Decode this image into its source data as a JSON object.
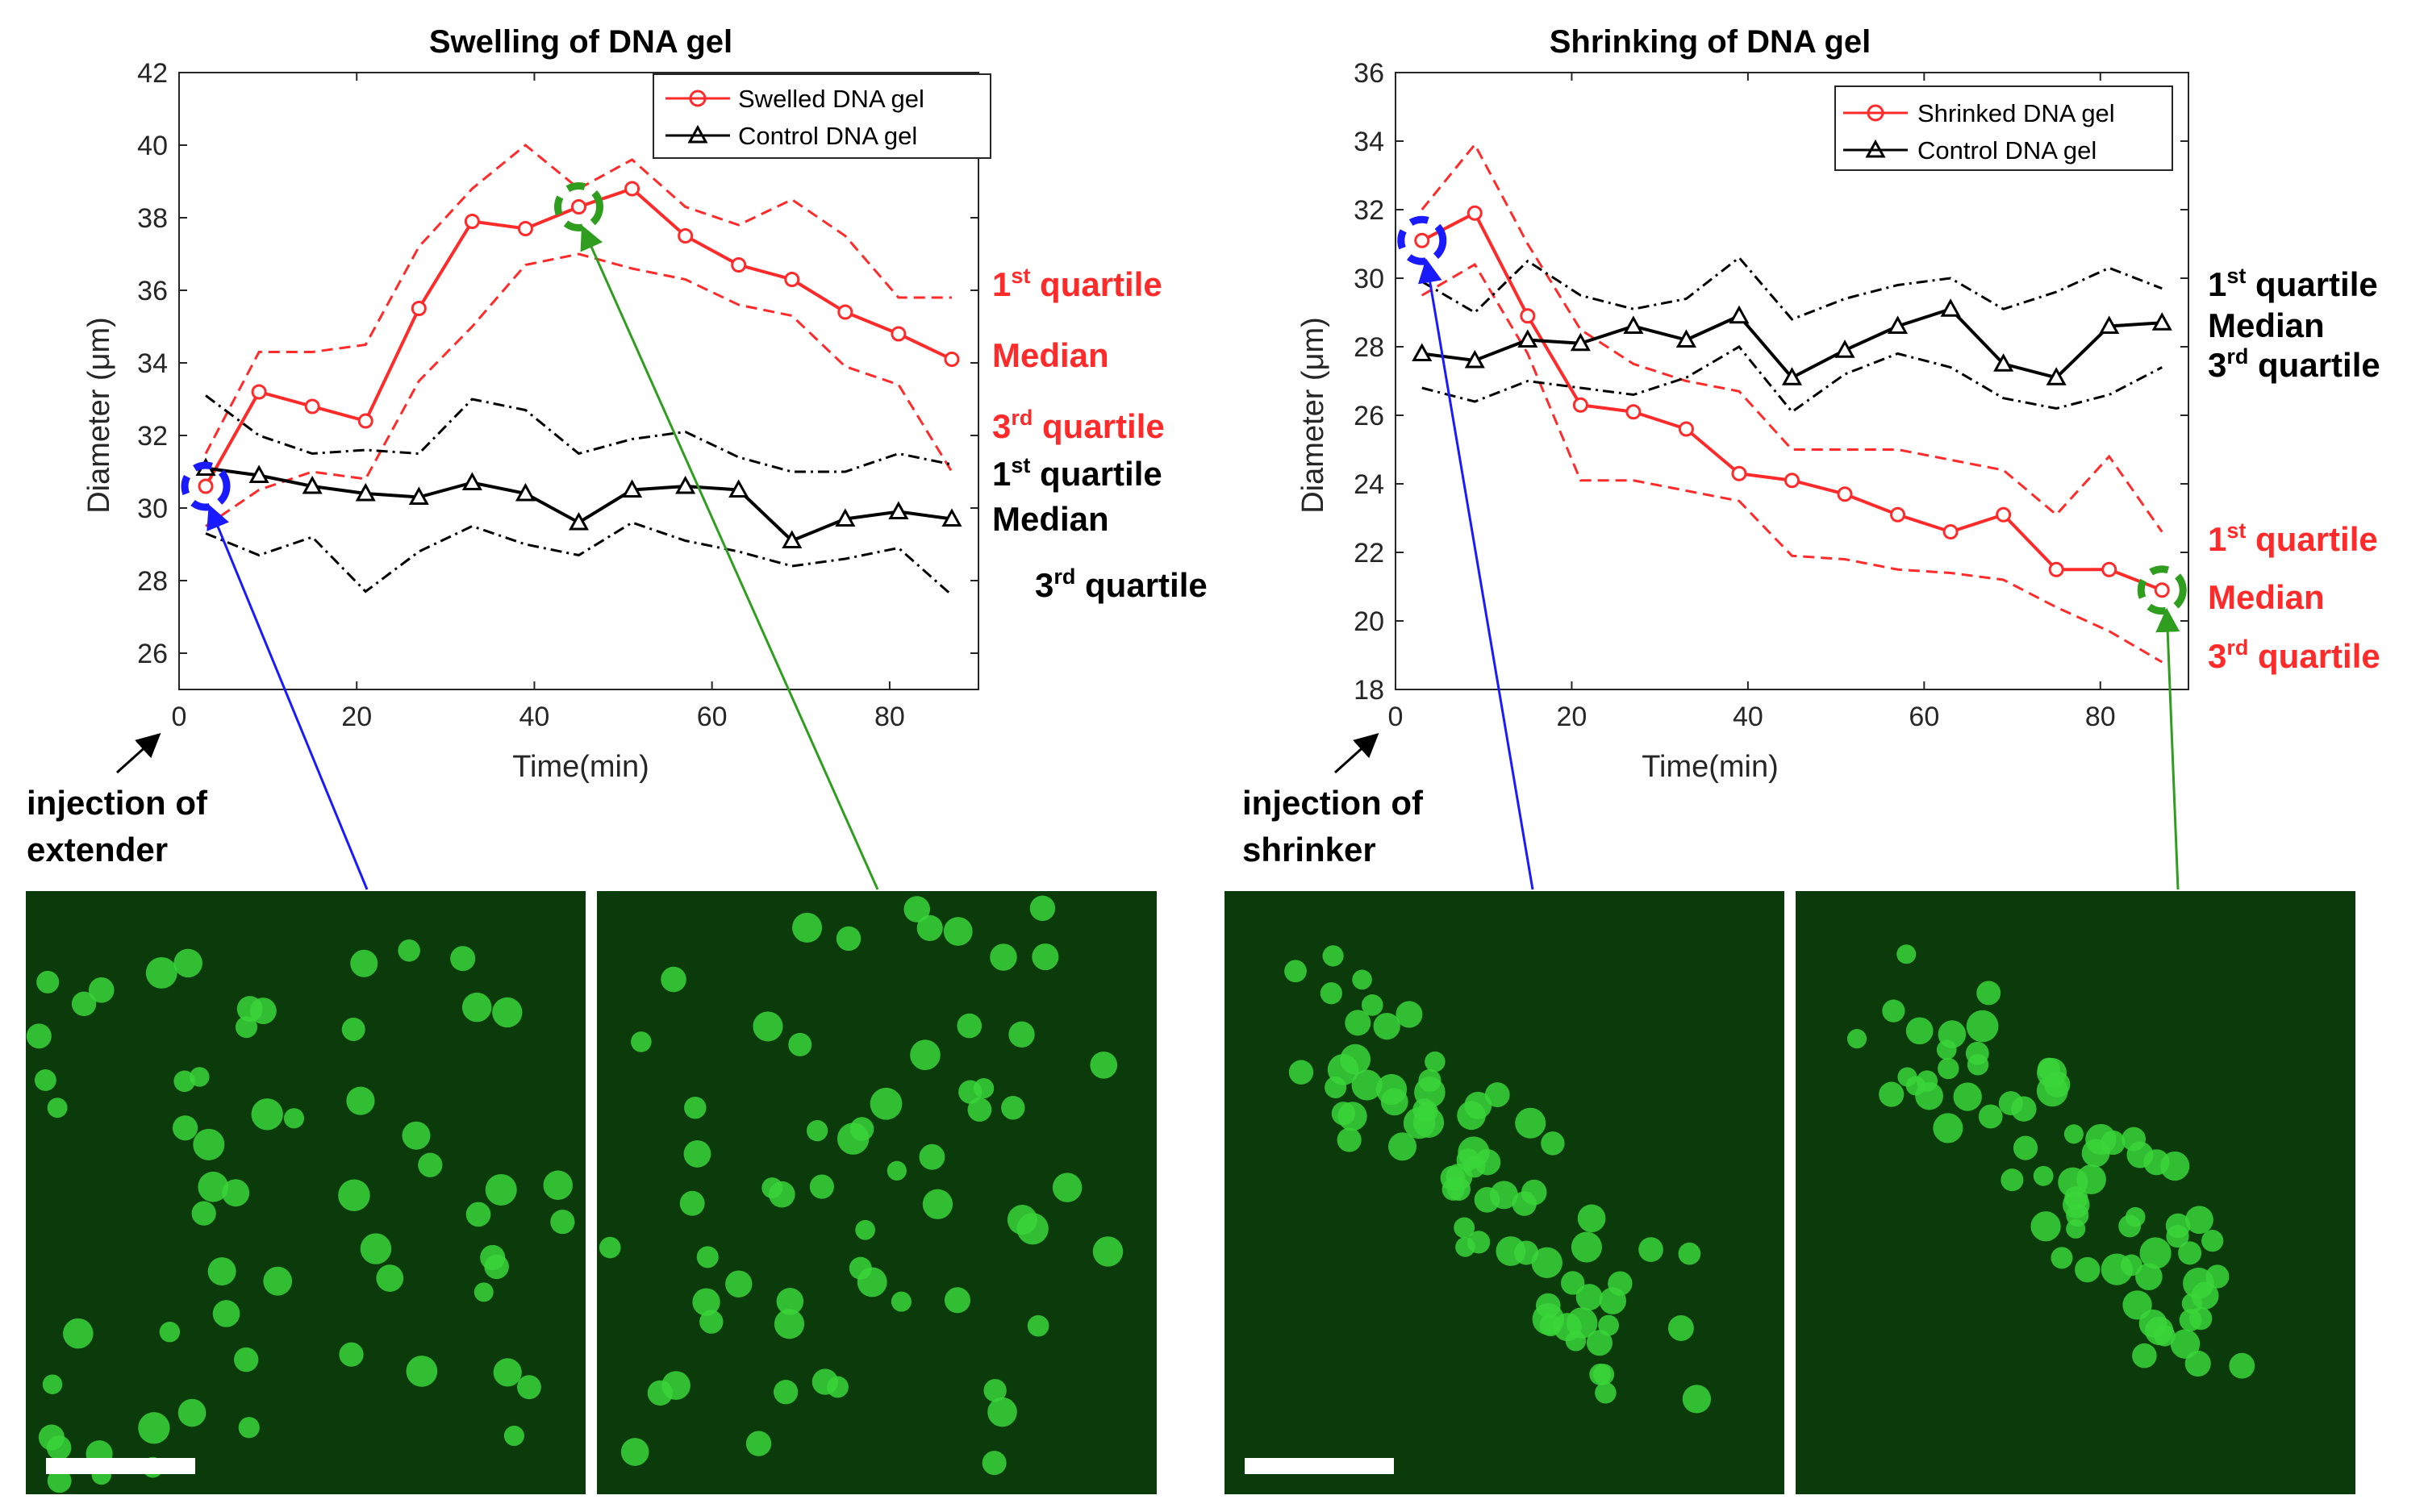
{
  "colors": {
    "swelled": "#ff2a2a",
    "control": "#000000",
    "start_marker": "#1a1aff",
    "end_marker": "#2f9e1f",
    "micro_bg": "#0b3a0b",
    "micro_bead": "#39d639",
    "scale_bar": "#ffffff"
  },
  "annotations": {
    "swelling_injection_line1": "injection of",
    "swelling_injection_line2": "extender",
    "shrinking_injection_line1": "injection of",
    "shrinking_injection_line2": "shrinker"
  },
  "quartile_labels": {
    "first": "1",
    "first_sup": "st",
    "third": "3",
    "third_sup": "rd",
    "quartile_word": " quartile",
    "median": "Median"
  },
  "micrographs": [
    {
      "id": "swelling-start",
      "has_scale_bar": true
    },
    {
      "id": "swelling-end",
      "has_scale_bar": false
    },
    {
      "id": "shrinking-start",
      "has_scale_bar": true
    },
    {
      "id": "shrinking-end",
      "has_scale_bar": false
    }
  ],
  "chart_data": [
    {
      "type": "line",
      "title": "Swelling of DNA gel",
      "xlabel": "Time(min)",
      "ylabel": "Diameter (μm)",
      "xlim": [
        0,
        90
      ],
      "ylim": [
        25,
        42
      ],
      "xticks": [
        0,
        20,
        40,
        60,
        80
      ],
      "yticks": [
        26,
        28,
        30,
        32,
        34,
        36,
        38,
        40,
        42
      ],
      "legend_position": "top-right",
      "series": [
        {
          "name": "Swelled DNA gel",
          "role": "median",
          "marker": "circle",
          "color": "#ff2a2a",
          "x": [
            3,
            9,
            15,
            21,
            27,
            33,
            39,
            45,
            51,
            57,
            63,
            69,
            75,
            81,
            87
          ],
          "y": [
            30.6,
            33.2,
            32.8,
            32.4,
            35.5,
            37.9,
            37.7,
            38.3,
            38.8,
            37.5,
            36.7,
            36.3,
            35.4,
            34.8,
            34.1
          ]
        },
        {
          "name": "Swelled 1st quartile",
          "role": "quartile",
          "color": "#ff2a2a",
          "x": [
            3,
            9,
            15,
            21,
            27,
            33,
            39,
            45,
            51,
            57,
            63,
            69,
            75,
            81,
            87
          ],
          "y": [
            31.5,
            34.3,
            34.3,
            34.5,
            37.2,
            38.8,
            40.0,
            38.8,
            39.6,
            38.3,
            37.8,
            38.5,
            37.5,
            35.8,
            35.8
          ]
        },
        {
          "name": "Swelled 3rd quartile",
          "role": "quartile",
          "color": "#ff2a2a",
          "x": [
            3,
            9,
            15,
            21,
            27,
            33,
            39,
            45,
            51,
            57,
            63,
            69,
            75,
            81,
            87
          ],
          "y": [
            29.5,
            30.5,
            31.0,
            30.8,
            33.5,
            35.0,
            36.7,
            37.0,
            36.6,
            36.3,
            35.6,
            35.3,
            33.9,
            33.4,
            31.0
          ]
        },
        {
          "name": "Control DNA gel",
          "role": "median",
          "marker": "triangle",
          "color": "#000000",
          "x": [
            3,
            9,
            15,
            21,
            27,
            33,
            39,
            45,
            51,
            57,
            63,
            69,
            75,
            81,
            87
          ],
          "y": [
            31.1,
            30.9,
            30.6,
            30.4,
            30.3,
            30.7,
            30.4,
            29.6,
            30.5,
            30.6,
            30.5,
            29.1,
            29.7,
            29.9,
            29.7
          ]
        },
        {
          "name": "Control 1st quartile",
          "role": "quartile",
          "color": "#000000",
          "x": [
            3,
            9,
            15,
            21,
            27,
            33,
            39,
            45,
            51,
            57,
            63,
            69,
            75,
            81,
            87
          ],
          "y": [
            33.1,
            32.0,
            31.5,
            31.6,
            31.5,
            33.0,
            32.7,
            31.5,
            31.9,
            32.1,
            31.4,
            31.0,
            31.0,
            31.5,
            31.2
          ]
        },
        {
          "name": "Control 3rd quartile",
          "role": "quartile",
          "color": "#000000",
          "x": [
            3,
            9,
            15,
            21,
            27,
            33,
            39,
            45,
            51,
            57,
            63,
            69,
            75,
            81,
            87
          ],
          "y": [
            29.3,
            28.7,
            29.2,
            27.7,
            28.8,
            29.5,
            29.0,
            28.7,
            29.6,
            29.1,
            28.8,
            28.4,
            28.6,
            28.9,
            27.6
          ]
        }
      ],
      "highlight_points": [
        {
          "x": 3,
          "y": 30.6,
          "color": "#1a1aff"
        },
        {
          "x": 45,
          "y": 38.3,
          "color": "#2f9e1f"
        }
      ],
      "right_labels": [
        {
          "text": "1st quartile",
          "group": "red"
        },
        {
          "text": "Median",
          "group": "red"
        },
        {
          "text": "3rd quartile",
          "group": "red"
        },
        {
          "text": "1st quartile",
          "group": "black"
        },
        {
          "text": "Median",
          "group": "black"
        },
        {
          "text": "3rd quartile",
          "group": "black"
        }
      ]
    },
    {
      "type": "line",
      "title": "Shrinking of DNA gel",
      "xlabel": "Time(min)",
      "ylabel": "Diameter (μm)",
      "xlim": [
        0,
        90
      ],
      "ylim": [
        18,
        36
      ],
      "xticks": [
        0,
        20,
        40,
        60,
        80
      ],
      "yticks": [
        18,
        20,
        22,
        24,
        26,
        28,
        30,
        32,
        34,
        36
      ],
      "legend_position": "top-right",
      "series": [
        {
          "name": "Shrinked DNA gel",
          "role": "median",
          "marker": "circle",
          "color": "#ff2a2a",
          "x": [
            3,
            9,
            15,
            21,
            27,
            33,
            39,
            45,
            51,
            57,
            63,
            69,
            75,
            81,
            87
          ],
          "y": [
            31.1,
            31.9,
            28.9,
            26.3,
            26.1,
            25.6,
            24.3,
            24.1,
            23.7,
            23.1,
            22.6,
            23.1,
            21.5,
            21.5,
            20.9
          ]
        },
        {
          "name": "Shrinked 1st quartile",
          "role": "quartile",
          "color": "#ff2a2a",
          "x": [
            3,
            9,
            15,
            21,
            27,
            33,
            39,
            45,
            51,
            57,
            63,
            69,
            75,
            81,
            87
          ],
          "y": [
            32.0,
            33.9,
            31.0,
            28.5,
            27.5,
            27.0,
            26.7,
            25.0,
            25.0,
            25.0,
            24.7,
            24.4,
            23.1,
            24.8,
            22.6
          ]
        },
        {
          "name": "Shrinked 3rd quartile",
          "role": "quartile",
          "color": "#ff2a2a",
          "x": [
            3,
            9,
            15,
            21,
            27,
            33,
            39,
            45,
            51,
            57,
            63,
            69,
            75,
            81,
            87
          ],
          "y": [
            29.5,
            30.4,
            27.8,
            24.1,
            24.1,
            23.8,
            23.5,
            21.9,
            21.8,
            21.5,
            21.4,
            21.2,
            20.4,
            19.7,
            18.8
          ]
        },
        {
          "name": "Control DNA gel",
          "role": "median",
          "marker": "triangle",
          "color": "#000000",
          "x": [
            3,
            9,
            15,
            21,
            27,
            33,
            39,
            45,
            51,
            57,
            63,
            69,
            75,
            81,
            87
          ],
          "y": [
            27.8,
            27.6,
            28.2,
            28.1,
            28.6,
            28.2,
            28.9,
            27.1,
            27.9,
            28.6,
            29.1,
            27.5,
            27.1,
            28.6,
            28.7
          ]
        },
        {
          "name": "Control 1st quartile",
          "role": "quartile",
          "color": "#000000",
          "x": [
            3,
            9,
            15,
            21,
            27,
            33,
            39,
            45,
            51,
            57,
            63,
            69,
            75,
            81,
            87
          ],
          "y": [
            29.9,
            29.0,
            30.5,
            29.5,
            29.1,
            29.4,
            30.6,
            28.8,
            29.4,
            29.8,
            30.0,
            29.1,
            29.6,
            30.3,
            29.7
          ]
        },
        {
          "name": "Control 3rd quartile",
          "role": "quartile",
          "color": "#000000",
          "x": [
            3,
            9,
            15,
            21,
            27,
            33,
            39,
            45,
            51,
            57,
            63,
            69,
            75,
            81,
            87
          ],
          "y": [
            26.8,
            26.4,
            27.0,
            26.8,
            26.6,
            27.1,
            28.0,
            26.1,
            27.2,
            27.8,
            27.4,
            26.5,
            26.2,
            26.6,
            27.4
          ]
        }
      ],
      "highlight_points": [
        {
          "x": 3,
          "y": 31.1,
          "color": "#1a1aff"
        },
        {
          "x": 87,
          "y": 20.9,
          "color": "#2f9e1f"
        }
      ],
      "right_labels": [
        {
          "text": "1st quartile",
          "group": "black"
        },
        {
          "text": "Median",
          "group": "black"
        },
        {
          "text": "3rd quartile",
          "group": "black"
        },
        {
          "text": "1st quartile",
          "group": "red"
        },
        {
          "text": "Median",
          "group": "red"
        },
        {
          "text": "3rd quartile",
          "group": "red"
        }
      ]
    }
  ]
}
